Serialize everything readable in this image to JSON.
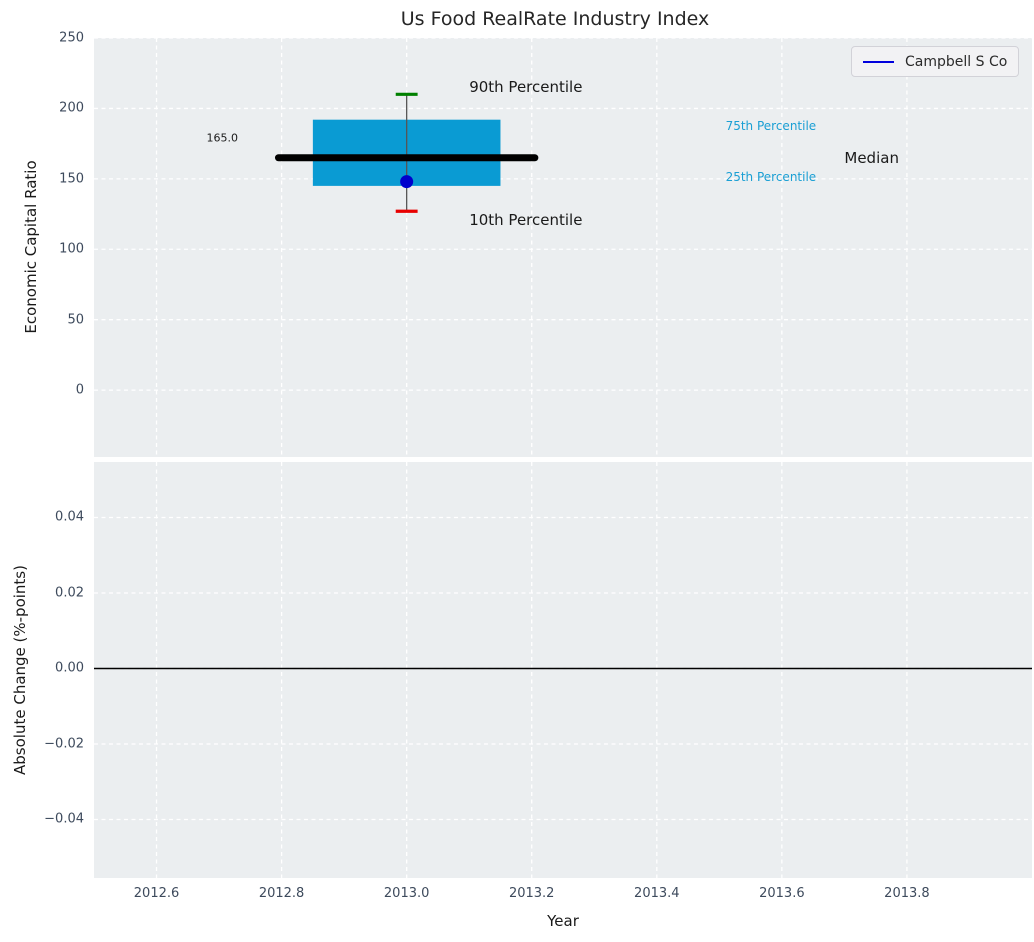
{
  "title": "Us Food RealRate Industry Index",
  "legend": {
    "label": "Campbell S Co"
  },
  "colors": {
    "figure_bg": "#ffffff",
    "axes_bg": "#ebeef0",
    "grid": "#ffffff",
    "box_fill": "#0a9bd3",
    "whisker": "#555555",
    "cap_top": "#008000",
    "cap_bottom": "#e80000",
    "median_line": "#000000",
    "company_dot": "#0000cc",
    "legend_line": "#0000dd",
    "percentile_label": "#1a9fd4",
    "tick_label": "#3d4a5c",
    "text": "#1a1a1a",
    "zero_line": "#000000"
  },
  "chart_data": [
    {
      "type": "boxplot",
      "title": "Us Food RealRate Industry Index",
      "ylabel": "Economic Capital Ratio",
      "xlim": [
        2012.5,
        2014.0
      ],
      "ylim": [
        -47.5,
        250
      ],
      "yticks": [
        250,
        200,
        150,
        100,
        50,
        0
      ],
      "ytick_labels": [
        "250",
        "200",
        "150",
        "100",
        "50",
        "0"
      ],
      "grid_xticks": [
        2012.6,
        2012.8,
        2013.0,
        2013.2,
        2013.4,
        2013.6,
        2013.8
      ],
      "legend_position": "upper right",
      "grid": true,
      "series": [
        {
          "name": "Campbell S Co",
          "x": 2013.0,
          "company_value": 148,
          "p10": 127,
          "p25": 145,
          "median": 165,
          "p75": 192,
          "p90": 210,
          "median_label": "165.0"
        }
      ],
      "box_x_range": [
        2012.85,
        2013.15
      ],
      "median_x_range": [
        2012.795,
        2013.205
      ],
      "cap_half_width": 0.0175,
      "annotations": [
        {
          "text": "90th Percentile",
          "x": 2013.1,
          "y": 215,
          "size": 15,
          "color_key": "text"
        },
        {
          "text": "10th Percentile",
          "x": 2013.1,
          "y": 121,
          "size": 15,
          "color_key": "text"
        },
        {
          "text": "75th Percentile",
          "x": 2013.51,
          "y": 187.5,
          "size": 12,
          "color_key": "percentile_label"
        },
        {
          "text": "25th Percentile",
          "x": 2013.51,
          "y": 151,
          "size": 12,
          "color_key": "percentile_label"
        },
        {
          "text": "Median",
          "x": 2013.7,
          "y": 165,
          "size": 15,
          "color_key": "text"
        },
        {
          "text": "165.0",
          "x": 2012.68,
          "y": 179,
          "size": 11,
          "color_key": "text"
        }
      ]
    },
    {
      "type": "line",
      "xlabel": "Year",
      "ylabel": "Absolute Change (%-points)",
      "xlim": [
        2012.5,
        2014.0
      ],
      "ylim": [
        -0.0555,
        0.0547
      ],
      "yticks": [
        0.04,
        0.02,
        0.0,
        -0.02,
        -0.04
      ],
      "ytick_labels": [
        "0.04",
        "0.02",
        "0.00",
        "−0.02",
        "−0.04"
      ],
      "xticks": [
        2012.6,
        2012.8,
        2013.0,
        2013.2,
        2013.4,
        2013.6,
        2013.8
      ],
      "xtick_labels": [
        "2012.6",
        "2012.8",
        "2013.0",
        "2013.2",
        "2013.4",
        "2013.6",
        "2013.8"
      ],
      "zero_line_y": 0.0,
      "grid": true,
      "series": []
    }
  ]
}
